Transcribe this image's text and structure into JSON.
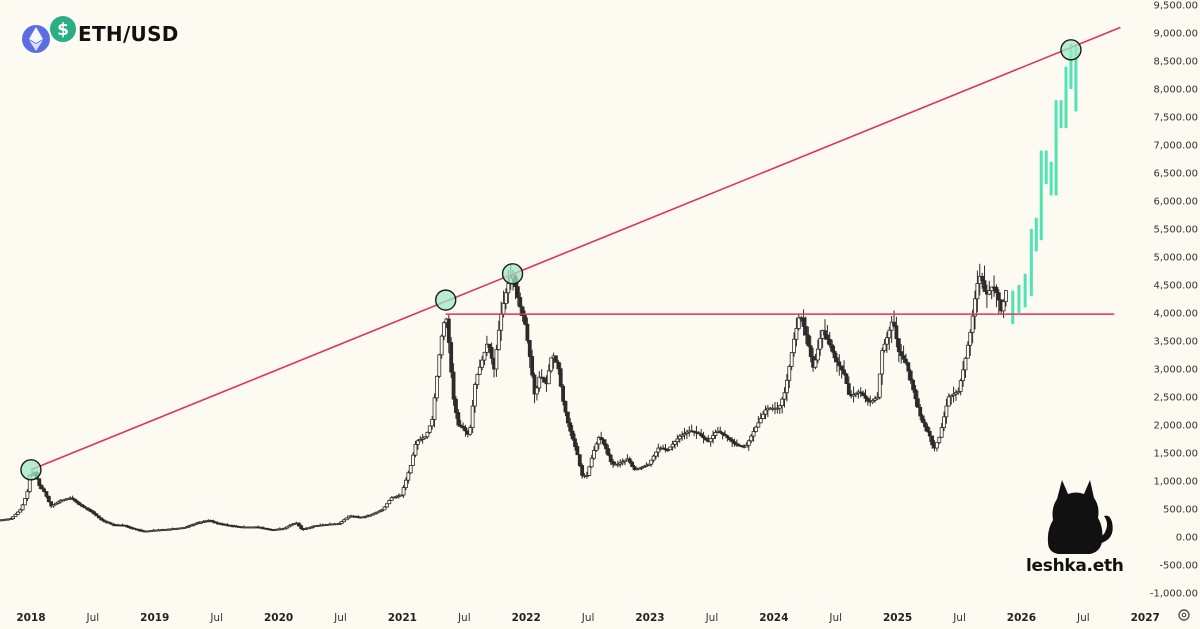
{
  "header": {
    "symbol": "ETH/USD",
    "logo_icons": [
      "ethereum-icon",
      "dollar-icon"
    ],
    "logo_colors": {
      "ethereum": "#5b6ee1",
      "dollar": "#2cae84"
    }
  },
  "watermark": {
    "text": "leshka.eth",
    "icon": "cat-silhouette-icon"
  },
  "settings_icon": "gear-icon",
  "chart_data": {
    "type": "candlestick",
    "title": "ETH/USD",
    "x_axis": {
      "labels": [
        "2018",
        "Jul",
        "2019",
        "Jul",
        "2020",
        "Jul",
        "2021",
        "Jul",
        "2022",
        "Jul",
        "2023",
        "Jul",
        "2024",
        "Jul",
        "2025",
        "Jul",
        "2026",
        "Jul",
        "2027"
      ],
      "start": 2017.75,
      "end": 2027.2
    },
    "y_axis": {
      "labels": [
        "9,500.00",
        "9,000.00",
        "8,500.00",
        "8,000.00",
        "7,500.00",
        "7,000.00",
        "6,500.00",
        "6,000.00",
        "5,500.00",
        "5,000.00",
        "4,500.00",
        "4,000.00",
        "3,500.00",
        "3,000.00",
        "2,500.00",
        "2,000.00",
        "1,500.00",
        "1,000.00",
        "500.00",
        "0.00",
        "-500.00",
        "-1,000.00"
      ],
      "ylim": [
        -1000,
        9500
      ]
    },
    "price_path": [
      [
        2017.75,
        300
      ],
      [
        2017.85,
        330
      ],
      [
        2017.93,
        500
      ],
      [
        2017.98,
        800
      ],
      [
        2018.0,
        1100
      ],
      [
        2018.04,
        1150
      ],
      [
        2018.08,
        900
      ],
      [
        2018.12,
        800
      ],
      [
        2018.17,
        550
      ],
      [
        2018.25,
        650
      ],
      [
        2018.33,
        700
      ],
      [
        2018.42,
        550
      ],
      [
        2018.5,
        450
      ],
      [
        2018.58,
        300
      ],
      [
        2018.67,
        220
      ],
      [
        2018.75,
        210
      ],
      [
        2018.85,
        140
      ],
      [
        2018.92,
        100
      ],
      [
        2019.0,
        120
      ],
      [
        2019.12,
        140
      ],
      [
        2019.25,
        170
      ],
      [
        2019.35,
        250
      ],
      [
        2019.45,
        300
      ],
      [
        2019.5,
        250
      ],
      [
        2019.6,
        210
      ],
      [
        2019.7,
        180
      ],
      [
        2019.83,
        180
      ],
      [
        2019.95,
        130
      ],
      [
        2020.05,
        150
      ],
      [
        2020.15,
        260
      ],
      [
        2020.2,
        130
      ],
      [
        2020.3,
        200
      ],
      [
        2020.42,
        230
      ],
      [
        2020.5,
        240
      ],
      [
        2020.58,
        380
      ],
      [
        2020.67,
        350
      ],
      [
        2020.75,
        390
      ],
      [
        2020.85,
        490
      ],
      [
        2020.92,
        700
      ],
      [
        2021.0,
        750
      ],
      [
        2021.08,
        1300
      ],
      [
        2021.12,
        1700
      ],
      [
        2021.2,
        1800
      ],
      [
        2021.25,
        2100
      ],
      [
        2021.32,
        3500
      ],
      [
        2021.36,
        4000
      ],
      [
        2021.38,
        3600
      ],
      [
        2021.42,
        2500
      ],
      [
        2021.46,
        2000
      ],
      [
        2021.5,
        1950
      ],
      [
        2021.55,
        1800
      ],
      [
        2021.6,
        2800
      ],
      [
        2021.66,
        3200
      ],
      [
        2021.7,
        3500
      ],
      [
        2021.75,
        3000
      ],
      [
        2021.8,
        3900
      ],
      [
        2021.86,
        4500
      ],
      [
        2021.9,
        4700
      ],
      [
        2021.95,
        4200
      ],
      [
        2022.0,
        3800
      ],
      [
        2022.04,
        3200
      ],
      [
        2022.08,
        2500
      ],
      [
        2022.12,
        2900
      ],
      [
        2022.17,
        2700
      ],
      [
        2022.22,
        3300
      ],
      [
        2022.27,
        3000
      ],
      [
        2022.3,
        2500
      ],
      [
        2022.35,
        2000
      ],
      [
        2022.42,
        1500
      ],
      [
        2022.46,
        1100
      ],
      [
        2022.5,
        1100
      ],
      [
        2022.55,
        1500
      ],
      [
        2022.6,
        1800
      ],
      [
        2022.65,
        1600
      ],
      [
        2022.7,
        1300
      ],
      [
        2022.75,
        1300
      ],
      [
        2022.83,
        1400
      ],
      [
        2022.88,
        1200
      ],
      [
        2022.95,
        1250
      ],
      [
        2023.0,
        1300
      ],
      [
        2023.08,
        1600
      ],
      [
        2023.15,
        1550
      ],
      [
        2023.25,
        1800
      ],
      [
        2023.33,
        1900
      ],
      [
        2023.4,
        1850
      ],
      [
        2023.48,
        1700
      ],
      [
        2023.55,
        1900
      ],
      [
        2023.62,
        1800
      ],
      [
        2023.7,
        1650
      ],
      [
        2023.78,
        1600
      ],
      [
        2023.85,
        1900
      ],
      [
        2023.95,
        2300
      ],
      [
        2024.05,
        2300
      ],
      [
        2024.1,
        2600
      ],
      [
        2024.17,
        3500
      ],
      [
        2024.22,
        4000
      ],
      [
        2024.27,
        3600
      ],
      [
        2024.33,
        3000
      ],
      [
        2024.4,
        3700
      ],
      [
        2024.45,
        3500
      ],
      [
        2024.5,
        3200
      ],
      [
        2024.58,
        2900
      ],
      [
        2024.62,
        2500
      ],
      [
        2024.7,
        2600
      ],
      [
        2024.78,
        2400
      ],
      [
        2024.85,
        2500
      ],
      [
        2024.88,
        3300
      ],
      [
        2024.93,
        3600
      ],
      [
        2024.97,
        3900
      ],
      [
        2025.02,
        3300
      ],
      [
        2025.08,
        3100
      ],
      [
        2025.15,
        2500
      ],
      [
        2025.2,
        2100
      ],
      [
        2025.27,
        1800
      ],
      [
        2025.3,
        1550
      ],
      [
        2025.35,
        1800
      ],
      [
        2025.42,
        2500
      ],
      [
        2025.5,
        2600
      ],
      [
        2025.55,
        3100
      ],
      [
        2025.6,
        3700
      ],
      [
        2025.65,
        4500
      ],
      [
        2025.68,
        4700
      ],
      [
        2025.72,
        4300
      ],
      [
        2025.78,
        4500
      ],
      [
        2025.82,
        4300
      ],
      [
        2025.85,
        4000
      ],
      [
        2025.88,
        4400
      ]
    ],
    "projection_path": [
      [
        2025.93,
        4200
      ],
      [
        2025.98,
        4300
      ],
      [
        2026.03,
        4500
      ],
      [
        2026.08,
        5300
      ],
      [
        2026.12,
        5500
      ],
      [
        2026.16,
        6700
      ],
      [
        2026.2,
        6500
      ],
      [
        2026.24,
        6300
      ],
      [
        2026.28,
        7600
      ],
      [
        2026.32,
        7500
      ],
      [
        2026.36,
        8200
      ],
      [
        2026.4,
        8600
      ],
      [
        2026.44,
        7800
      ]
    ],
    "lines": [
      {
        "name": "ascending-trendline",
        "from": [
          2018.0,
          1200
        ],
        "to": [
          2026.8,
          9100
        ],
        "color": "#e0325f"
      },
      {
        "name": "horizontal-resistance",
        "from": [
          2021.35,
          3980
        ],
        "to": [
          2026.75,
          3980
        ],
        "color": "#e0325f"
      }
    ],
    "touch_points": [
      [
        2018.0,
        1200
      ],
      [
        2021.35,
        4230
      ],
      [
        2021.89,
        4700
      ],
      [
        2026.4,
        8700
      ]
    ],
    "colors": {
      "candle": "#2b2b2b",
      "projection": "#4fe3b6",
      "trendline": "#e0325f",
      "circle_fill": "#9fe8c4"
    }
  }
}
